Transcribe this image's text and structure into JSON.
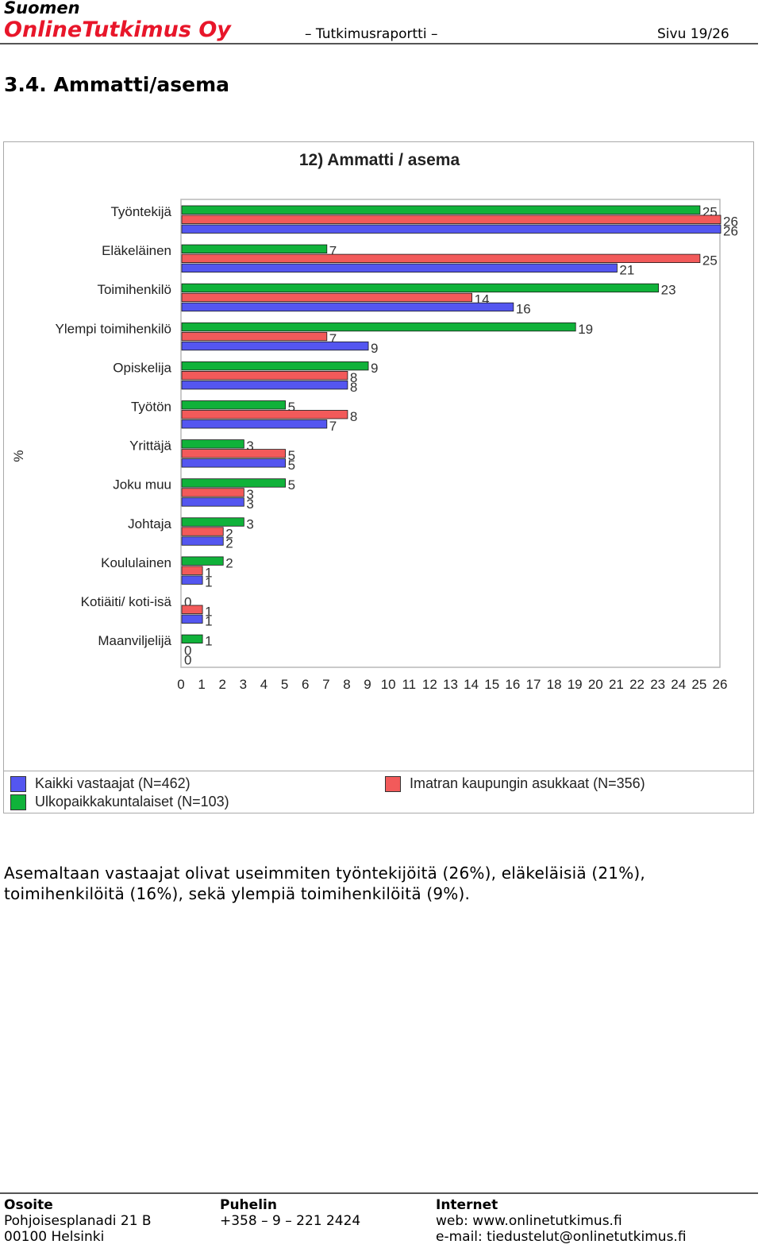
{
  "header": {
    "brand_line1": "Suomen",
    "brand_line2": "OnlineTutkimus Oy",
    "report_label": "– Tutkimusraportti –",
    "page": "Sivu 19/26"
  },
  "section_title": "3.4. Ammatti/asema",
  "chart_data": {
    "type": "bar",
    "orientation": "horizontal",
    "title": "12) Ammatti / asema",
    "ylabel": "%",
    "xlim": [
      0,
      26
    ],
    "x_ticks": [
      "0",
      "1",
      "2",
      "3",
      "4",
      "5",
      "6",
      "7",
      "8",
      "9",
      "10",
      "11",
      "12",
      "13",
      "14",
      "15",
      "16",
      "17",
      "18",
      "19",
      "20",
      "21",
      "22",
      "23",
      "24",
      "25",
      "26"
    ],
    "categories": [
      "Työntekijä",
      "Eläkeläinen",
      "Toimihenkilö",
      "Ylempi toimihenkilö",
      "Opiskelija",
      "Työtön",
      "Yrittäjä",
      "Joku muu",
      "Johtaja",
      "Koululainen",
      "Kotiäiti/ koti-isä",
      "Maanviljelijä"
    ],
    "series": [
      {
        "name": "Ulkopaikkakuntalaiset (N=103)",
        "color": "#10b23a",
        "values": [
          25,
          7,
          23,
          19,
          9,
          5,
          3,
          5,
          3,
          2,
          0,
          1
        ]
      },
      {
        "name": "Imatran kaupungin asukkaat (N=356)",
        "color": "#f25a5a",
        "values": [
          26,
          25,
          14,
          7,
          8,
          8,
          5,
          3,
          2,
          1,
          1,
          0
        ]
      },
      {
        "name": "Kaikki vastaajat (N=462)",
        "color": "#5456f0",
        "values": [
          26,
          21,
          16,
          9,
          8,
          7,
          5,
          3,
          2,
          1,
          1,
          0
        ]
      }
    ],
    "grid": false,
    "legend_position": "bottom"
  },
  "legend": {
    "all": "Kaikki vastaajat (N=462)",
    "outside": "Ulkopaikkakuntalaiset (N=103)",
    "imatra": "Imatran kaupungin asukkaat (N=356)"
  },
  "summary": "Asemaltaan vastaajat olivat useimmiten työntekijöitä (26%), eläkeläisiä (21%), toimihenkilöitä (16%), sekä ylempiä toimihenkilöitä (9%).",
  "footer": {
    "address_heading": "Osoite",
    "address_line1": "Pohjoisesplanadi 21 B",
    "address_line2": "00100 Helsinki",
    "phone_heading": "Puhelin",
    "phone": "+358 – 9 – 221 2424",
    "internet_heading": "Internet",
    "web": "web: www.onlinetutkimus.fi",
    "email": "e-mail: tiedustelut@onlinetutkimus.fi"
  }
}
